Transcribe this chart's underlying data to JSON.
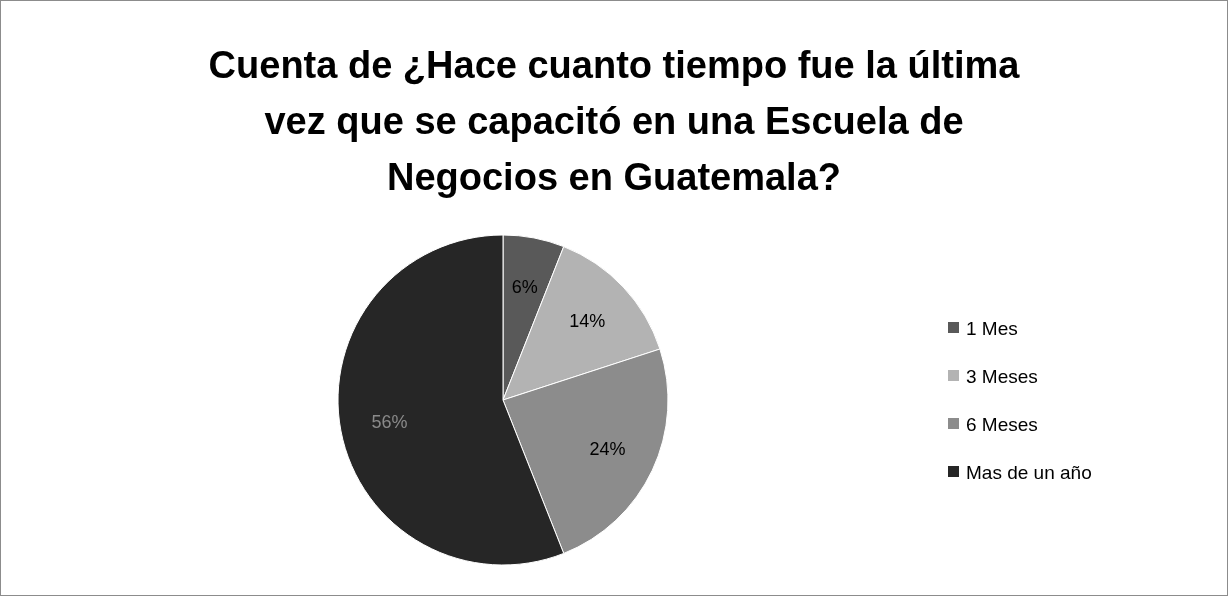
{
  "chart_data": {
    "type": "pie",
    "title": "Cuenta de ¿Hace cuanto tiempo fue la última vez que se capacitó en una Escuela de Negocios en Guatemala?",
    "categories": [
      "1 Mes",
      "3 Meses",
      "6 Meses",
      "Mas de un año"
    ],
    "values": [
      6,
      14,
      24,
      56
    ],
    "colors": [
      "#595959",
      "#b3b3b3",
      "#8c8c8c",
      "#262626"
    ],
    "value_labels": [
      "6%",
      "14%",
      "24%",
      "56%"
    ],
    "legend": "right"
  }
}
